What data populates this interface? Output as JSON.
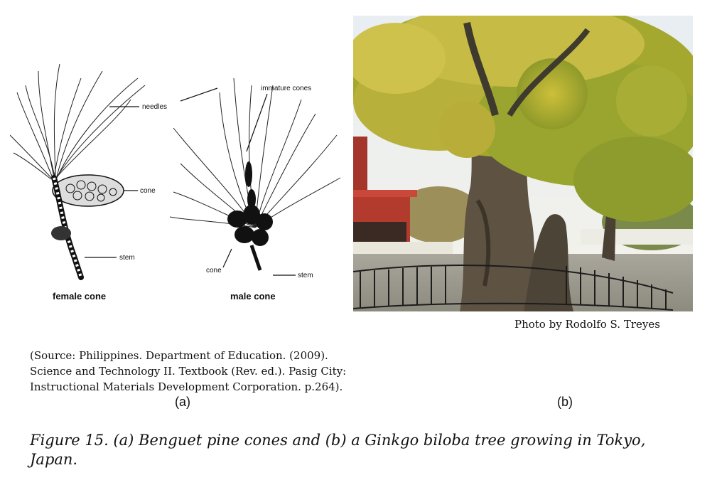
{
  "figure_a": {
    "labels": {
      "needles": "needles",
      "immature_cones": "immature cones",
      "cone_female": "cone",
      "stem_female": "stem",
      "cone_male": "cone",
      "stem_male": "stem"
    },
    "female_caption": "female cone",
    "male_caption": "male cone"
  },
  "photo_credit": "Photo by Rodolfo S. Treyes",
  "source_lines": [
    "(Source: Philippines. Department of Education. (2009).",
    "Science and Technology II. Textbook (Rev. ed.).  Pasig City:",
    "Instructional Materials Development Corporation. p.264)."
  ],
  "sub_label_a": "(a)",
  "sub_label_b": "(b)",
  "caption_lines": [
    "Figure 15. (a) Benguet pine cones and (b) a Ginkgo biloba tree  growing in Tokyo,",
    "Japan."
  ]
}
